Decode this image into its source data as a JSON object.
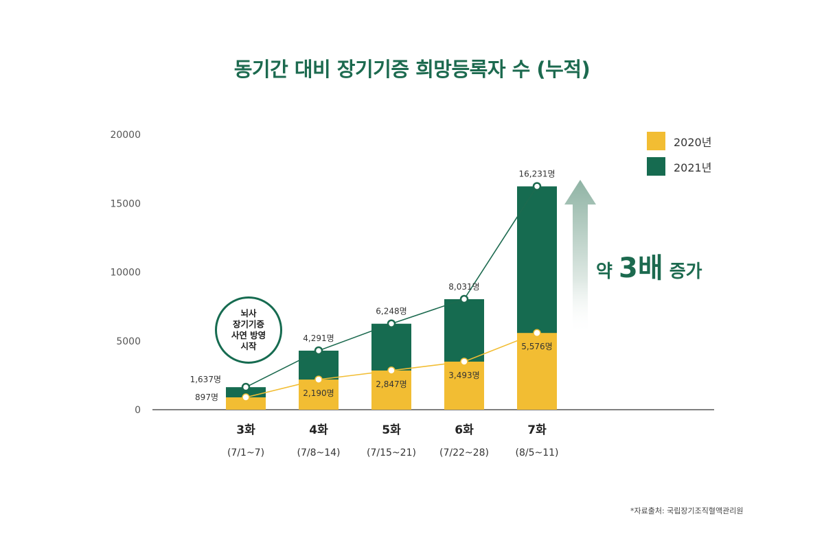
{
  "title": "동기간 대비 장기기증 희망등록자 수 (누적)",
  "colors": {
    "y2020": "#f2bd33",
    "y2021": "#166b50",
    "title": "#1c6a4f",
    "arrow": "#9bbcae"
  },
  "legend": [
    {
      "label": "2020년",
      "color": "#f2bd33"
    },
    {
      "label": "2021년",
      "color": "#166b50"
    }
  ],
  "callout_lines": [
    "뇌사",
    "장기기증",
    "사연 방영",
    "시작"
  ],
  "increase": {
    "prefix": "약",
    "value": "3배",
    "suffix": "증가"
  },
  "source": "*자료출처: 국립장기조직혈액관리원",
  "chart_data": {
    "type": "bar",
    "title": "동기간 대비 장기기증 희망등록자 수 (누적)",
    "categories": [
      "3화",
      "4화",
      "5화",
      "6화",
      "7화"
    ],
    "sublabels": [
      "(7/1~7)",
      "(7/8~14)",
      "(7/15~21)",
      "(7/22~28)",
      "(8/5~11)"
    ],
    "ylim": [
      0,
      20000
    ],
    "yticks": [
      "0",
      "5000",
      "10000",
      "15000",
      "20000"
    ],
    "series": [
      {
        "name": "2020년",
        "values": [
          897,
          2190,
          2847,
          3493,
          5576
        ],
        "labels": [
          "897명",
          "2,190명",
          "2,847명",
          "3,493명",
          "5,576명"
        ]
      },
      {
        "name": "2021년",
        "values": [
          1637,
          4291,
          6248,
          8031,
          16231
        ],
        "labels": [
          "1,637명",
          "4,291명",
          "6,248명",
          "8,031명",
          "16,231명"
        ]
      }
    ]
  }
}
